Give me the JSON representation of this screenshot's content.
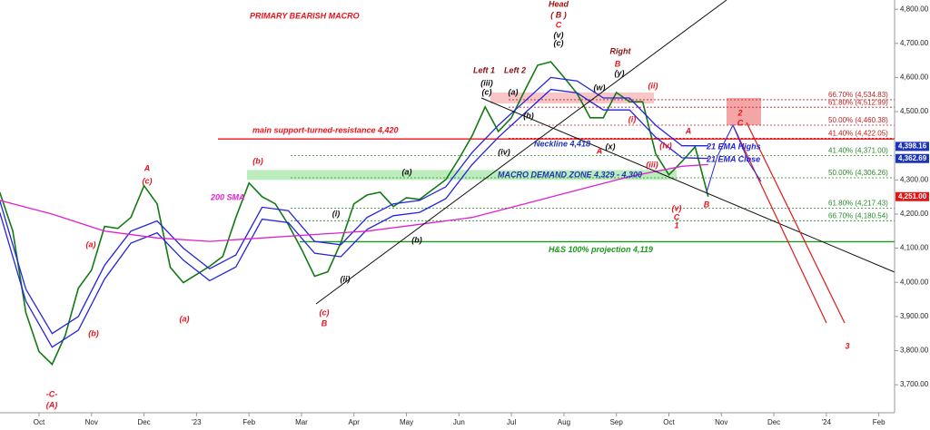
{
  "chart_data": {
    "type": "line",
    "title": "PRIMARY BEARISH MACRO",
    "xlim": [
      -0.744,
      16.3
    ],
    "ylim": [
      3618,
      4827
    ],
    "grid": false,
    "xticks": [
      {
        "value": 0,
        "label": "Oct"
      },
      {
        "value": 1,
        "label": "Nov"
      },
      {
        "value": 2,
        "label": "Dec"
      },
      {
        "value": 3,
        "label": "'23"
      },
      {
        "value": 4,
        "label": "Feb"
      },
      {
        "value": 5,
        "label": "Mar"
      },
      {
        "value": 6,
        "label": "Apr"
      },
      {
        "value": 7,
        "label": "May"
      },
      {
        "value": 8,
        "label": "Jun"
      },
      {
        "value": 9,
        "label": "Jul"
      },
      {
        "value": 10,
        "label": "Aug"
      },
      {
        "value": 11,
        "label": "Sep"
      },
      {
        "value": 12,
        "label": "Oct"
      },
      {
        "value": 13,
        "label": "Nov"
      },
      {
        "value": 14,
        "label": "Dec"
      },
      {
        "value": 15,
        "label": "'24"
      },
      {
        "value": 16,
        "label": "Feb"
      }
    ],
    "yticks": [
      {
        "value": 3700,
        "label": "3,700.00"
      },
      {
        "value": 3800,
        "label": "3,800.00"
      },
      {
        "value": 3900,
        "label": "3,900.00"
      },
      {
        "value": 4000,
        "label": "4,000.00"
      },
      {
        "value": 4100,
        "label": "4,100.00"
      },
      {
        "value": 4200,
        "label": "4,200.00"
      },
      {
        "value": 4300,
        "label": "4,300.00"
      },
      {
        "value": 4400,
        "label": "4,400.00"
      },
      {
        "value": 4500,
        "label": "4,500.00"
      },
      {
        "value": 4600,
        "label": "4,600.00"
      },
      {
        "value": 4700,
        "label": "4,700.00"
      },
      {
        "value": 4800,
        "label": "4,800.00"
      }
    ],
    "series": [
      {
        "color": "#137a13",
        "x": [
          -0.75,
          -0.5,
          -0.25,
          0,
          0.25,
          0.5,
          0.75,
          1,
          1.25,
          1.5,
          1.75,
          2,
          2.25,
          2.5,
          2.75,
          3,
          3.25,
          3.5,
          3.75,
          4,
          4.25,
          4.5,
          4.75,
          5,
          5.25,
          5.5,
          5.75,
          6,
          6.25,
          6.5,
          6.75,
          7,
          7.25,
          7.5,
          7.75,
          8,
          8.25,
          8.5,
          8.75,
          9,
          9.25,
          9.5,
          9.75,
          10,
          10.25,
          10.5,
          10.75,
          11,
          11.25,
          11.5,
          11.75,
          12,
          12.25,
          12.5,
          12.75
        ],
        "values": [
          4264,
          4150,
          3911,
          3797,
          3760,
          3845,
          3983,
          4036,
          4164,
          4158,
          4190,
          4283,
          4230,
          4044,
          3999,
          4023,
          4047,
          4076,
          4190,
          4291,
          4251,
          4230,
          4169,
          4097,
          4018,
          4031,
          4116,
          4230,
          4256,
          4264,
          4222,
          4248,
          4243,
          4272,
          4301,
          4362,
          4429,
          4514,
          4442,
          4482,
          4561,
          4636,
          4646,
          4601,
          4553,
          4482,
          4482,
          4556,
          4529,
          4529,
          4376,
          4315,
          4354,
          4397,
          4251
        ]
      },
      {
        "name": "21 EMA Highs",
        "color": "#2323e0",
        "x": [
          -0.75,
          -0.25,
          0.25,
          0.75,
          1.25,
          1.75,
          2.25,
          2.75,
          3.25,
          3.75,
          4.25,
          4.75,
          5.25,
          5.75,
          6.25,
          6.75,
          7.25,
          7.75,
          8.25,
          8.75,
          9.25,
          9.75,
          10.25,
          10.75,
          11.25,
          11.75,
          12.25,
          12.75
        ],
        "values": [
          4240,
          3980,
          3850,
          3900,
          4050,
          4150,
          4180,
          4100,
          4040,
          4080,
          4220,
          4210,
          4120,
          4110,
          4190,
          4230,
          4240,
          4280,
          4380,
          4460,
          4530,
          4600,
          4590,
          4540,
          4540,
          4460,
          4400,
          4400
        ]
      },
      {
        "name": "21 EMA Close",
        "color": "#2323e0",
        "x": [
          -0.75,
          -0.25,
          0.25,
          0.75,
          1.25,
          1.75,
          2.25,
          2.75,
          3.25,
          3.75,
          4.25,
          4.75,
          5.25,
          5.75,
          6.25,
          6.75,
          7.25,
          7.75,
          8.25,
          8.75,
          9.25,
          9.75,
          10.25,
          10.75,
          11.25,
          11.75,
          12.25,
          12.75
        ],
        "values": [
          4205,
          3945,
          3810,
          3860,
          4010,
          4115,
          4145,
          4065,
          4005,
          4045,
          4185,
          4175,
          4085,
          4075,
          4155,
          4195,
          4205,
          4245,
          4345,
          4425,
          4495,
          4565,
          4555,
          4505,
          4505,
          4425,
          4365,
          4363
        ]
      },
      {
        "name": "200 SMA",
        "color": "#e020d0",
        "x": [
          -0.75,
          0.25,
          1.25,
          2.25,
          3.25,
          4.25,
          5.25,
          6.25,
          7.25,
          8.25,
          9.25,
          10.25,
          11.25,
          12.25,
          12.75
        ],
        "values": [
          4240,
          4200,
          4150,
          4130,
          4120,
          4130,
          4140,
          4150,
          4170,
          4190,
          4230,
          4270,
          4310,
          4340,
          4345
        ]
      }
    ],
    "levels": [
      {
        "value": 4534.83,
        "label": "66.70% (4,534.83)",
        "color": "#c02020"
      },
      {
        "value": 4512.99,
        "label": "61.80% (4,512.99)",
        "color": "#c02020"
      },
      {
        "value": 4460.38,
        "label": "50.00% (4,460.38)",
        "color": "#c02020"
      },
      {
        "value": 4422.05,
        "label": "41.40% (4,422.05)",
        "color": "#c02020"
      },
      {
        "value": 4371,
        "label": "41.40% (4,371.00)",
        "color": "#2a8a2a"
      },
      {
        "value": 4306.26,
        "label": "50.00% (4,306.26)",
        "color": "#2a8a2a"
      },
      {
        "value": 4217.43,
        "label": "61.80% (4,217.43)",
        "color": "#2a8a2a"
      },
      {
        "value": 4180.54,
        "label": "66.70% (4,180.54)",
        "color": "#2a8a2a"
      }
    ],
    "support_line": {
      "value": 4420,
      "label": "main support-turned-resistance 4,420",
      "color": "#e8141e"
    },
    "projection_line": {
      "value": 4119,
      "label": "H&S 100% projection 4,119",
      "color": "#1a9a1a"
    },
    "demand_zone": {
      "top": 4329,
      "bottom": 4300,
      "label": "MACRO DEMAND ZONE 4,329 - 4,300"
    },
    "neckline": {
      "label": "Neckline 4,418"
    },
    "price_tags": [
      {
        "value": 4398.16,
        "label": "4,398.16",
        "color": "#1c34b8"
      },
      {
        "value": 4362.69,
        "label": "4,362.69",
        "color": "#1c34b8"
      },
      {
        "value": 4251,
        "label": "4,251.00",
        "color": "#e01818"
      }
    ],
    "annotations": [
      {
        "text": "Head",
        "color": "#a01010"
      },
      {
        "text": "( B )",
        "color": "#a01010"
      },
      {
        "text": "C",
        "color": "#e8141e"
      },
      {
        "text": "(v)",
        "color": "#111"
      },
      {
        "text": "(c)",
        "color": "#111"
      },
      {
        "text": "Left 1",
        "color": "#8a1010"
      },
      {
        "text": "Left 2",
        "color": "#8a1010"
      },
      {
        "text": "Right",
        "color": "#8a1010"
      },
      {
        "text": "B",
        "color": "#e8141e"
      },
      {
        "text": "(y)",
        "color": "#111"
      },
      {
        "text": "(iii)",
        "color": "#111"
      },
      {
        "text": "(c)",
        "color": "#111"
      },
      {
        "text": "(a)",
        "color": "#111"
      },
      {
        "text": "(w)",
        "color": "#111"
      },
      {
        "text": "(ii)",
        "color": "#e8141e"
      },
      {
        "text": "(i)",
        "color": "#e8141e"
      },
      {
        "text": "(b)",
        "color": "#111"
      },
      {
        "text": "(iv)",
        "color": "#111"
      },
      {
        "text": "(x)",
        "color": "#111"
      },
      {
        "text": "A",
        "color": "#e8141e"
      },
      {
        "text": "(iv)",
        "color": "#e8141e"
      },
      {
        "text": "(iii)",
        "color": "#e8141e"
      },
      {
        "text": "A",
        "color": "#e8141e"
      },
      {
        "text": "(v)",
        "color": "#e8141e"
      },
      {
        "text": "C",
        "color": "#e8141e"
      },
      {
        "text": "1",
        "color": "#e8141e"
      },
      {
        "text": "B",
        "color": "#e8141e"
      },
      {
        "text": "2",
        "color": "#e8141e"
      },
      {
        "text": "C",
        "color": "#e8141e"
      },
      {
        "text": "3",
        "color": "#e8141e"
      },
      {
        "text": "A",
        "color": "#e8141e"
      },
      {
        "text": "(c)",
        "color": "#e8141e"
      },
      {
        "text": "(b)",
        "color": "#e8141e"
      },
      {
        "text": "(a)",
        "color": "#e8141e"
      },
      {
        "text": "(b)",
        "color": "#e8141e"
      },
      {
        "text": "(a)",
        "color": "#e8141e"
      },
      {
        "text": "-C-",
        "color": "#e8141e"
      },
      {
        "text": "(A)",
        "color": "#e8141e"
      },
      {
        "text": "(a)",
        "color": "#111"
      },
      {
        "text": "(i)",
        "color": "#111"
      },
      {
        "text": "(b)",
        "color": "#111"
      },
      {
        "text": "(ii)",
        "color": "#111"
      },
      {
        "text": "(c)",
        "color": "#e8141e"
      },
      {
        "text": "B",
        "color": "#e8141e"
      }
    ]
  }
}
